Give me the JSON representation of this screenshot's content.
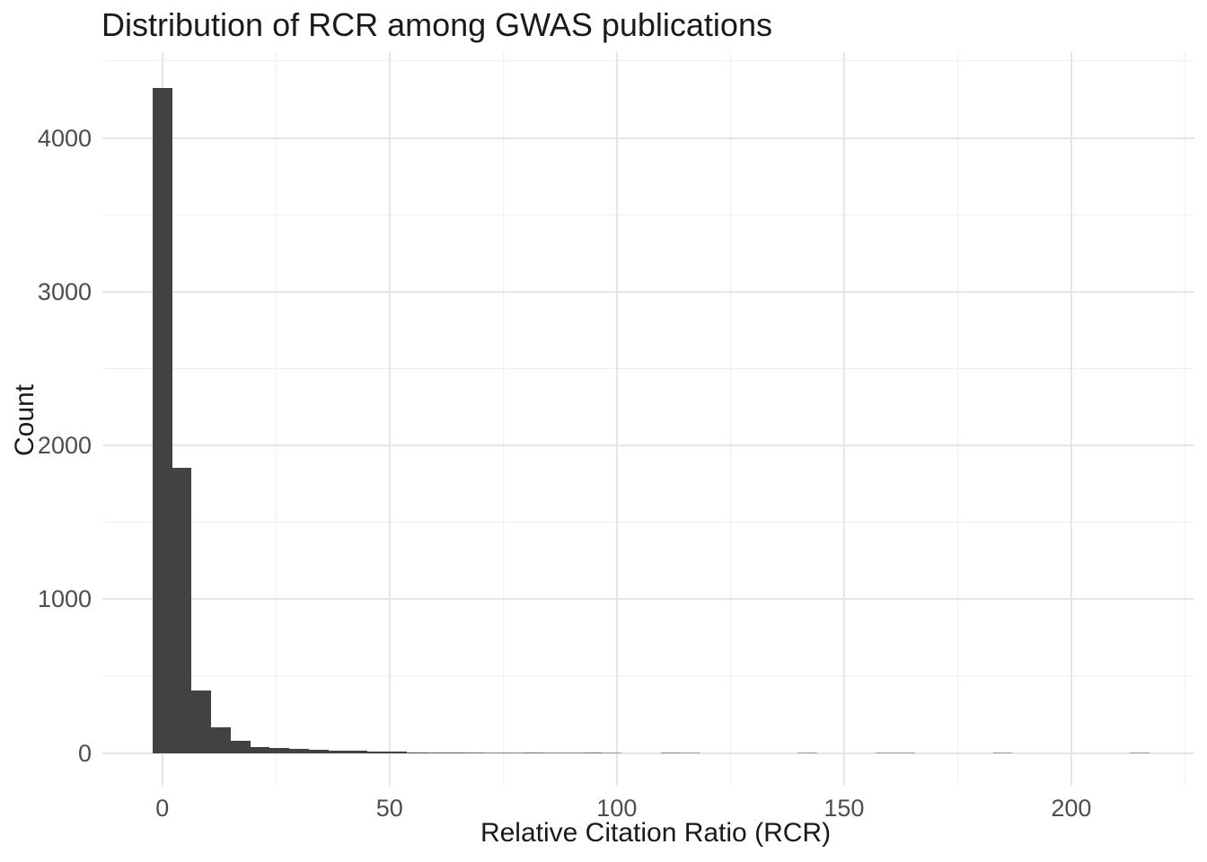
{
  "page": {
    "background": "#ffffff"
  },
  "chart_data": {
    "type": "histogram",
    "title": "Distribution of RCR among GWAS publications",
    "xlabel": "Relative Citation Ratio (RCR)",
    "ylabel": "Count",
    "legend": "none",
    "grid": "major+minor",
    "x_ticks": [
      0,
      50,
      100,
      150,
      200
    ],
    "x_tick_labels": [
      "0",
      "50",
      "100",
      "150",
      "200"
    ],
    "x_minor_ticks": [
      25,
      75,
      125,
      175,
      225
    ],
    "y_ticks": [
      0,
      1000,
      2000,
      3000,
      4000
    ],
    "y_tick_labels": [
      "0",
      "1000",
      "2000",
      "3000",
      "4000"
    ],
    "y_minor_ticks": [
      500,
      1500,
      2500,
      3500,
      4500
    ],
    "xlim": [
      -13.2,
      227.1
    ],
    "ylim": [
      -213,
      4558
    ],
    "bin_width": 4.3,
    "first_bin_center": 0,
    "bin_counts": [
      4322,
      1853,
      407,
      165,
      78,
      40,
      32,
      25,
      19,
      15,
      12,
      8,
      6,
      5,
      4,
      4,
      3,
      2,
      2,
      3,
      2,
      2,
      3,
      1,
      0,
      0,
      2,
      1,
      0,
      0,
      0,
      0,
      0,
      1,
      0,
      0,
      0,
      1,
      1,
      0,
      0,
      0,
      0,
      1,
      0,
      0,
      0,
      0,
      0,
      0,
      1
    ],
    "colors": {
      "bar": "#424242",
      "grid_major": "#e6e6e6",
      "grid_minor": "#f0f0f0",
      "tick_label": "#4d4d4d",
      "axis_title": "#1a1a1a",
      "title": "#1a1a1a",
      "background": "#ffffff"
    }
  }
}
